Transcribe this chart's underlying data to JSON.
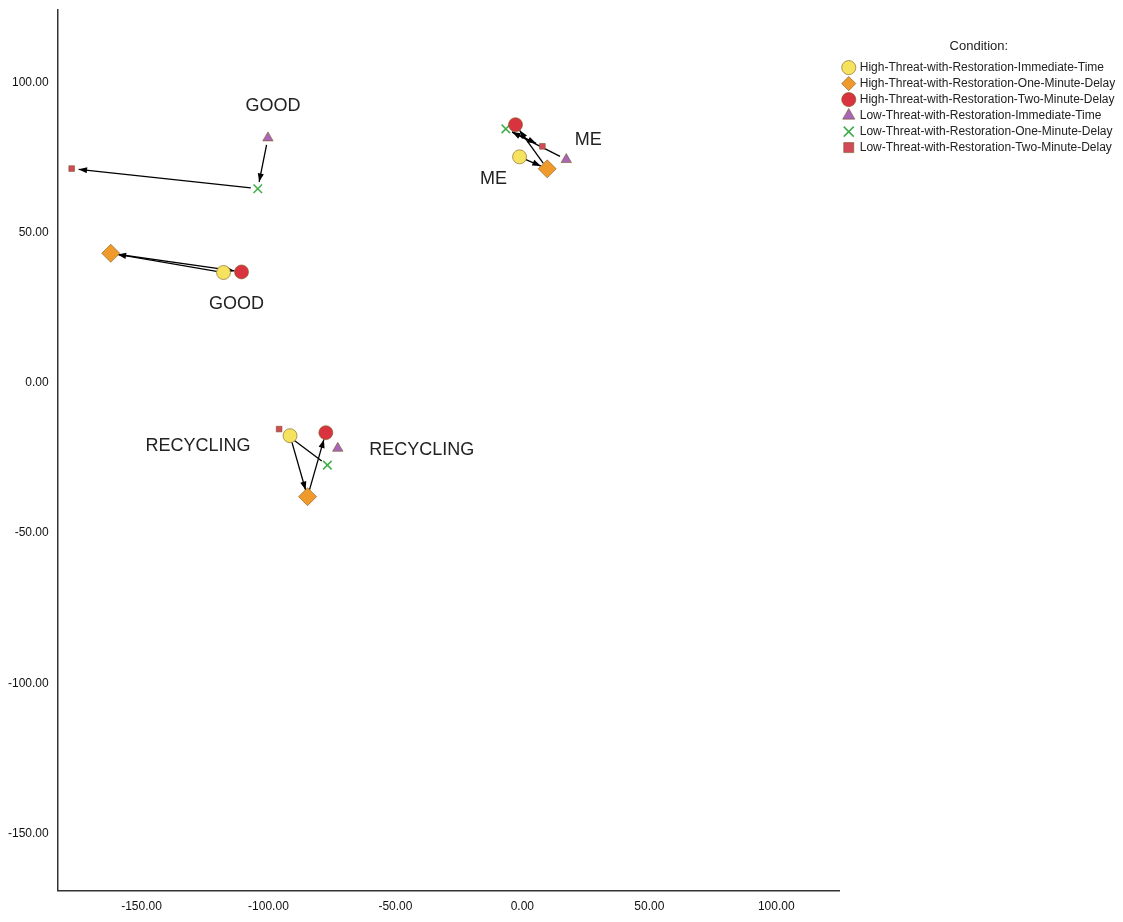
{
  "chart_data": {
    "type": "scatter",
    "legend_title": "Condition:",
    "legend": "top right",
    "grid": false,
    "xlim": [
      -183,
      125
    ],
    "ylim": [
      -169,
      124
    ],
    "xticks": [
      {
        "value": -150,
        "label": "-150.00"
      },
      {
        "value": -100,
        "label": "-100.00"
      },
      {
        "value": -50,
        "label": "-50.00"
      },
      {
        "value": 0,
        "label": "0.00"
      },
      {
        "value": 50,
        "label": "50.00"
      },
      {
        "value": 100,
        "label": "100.00"
      }
    ],
    "yticks": [
      {
        "value": -150,
        "label": "-150.00"
      },
      {
        "value": -100,
        "label": "-100.00"
      },
      {
        "value": -50,
        "label": "-50.00"
      },
      {
        "value": 0,
        "label": "0.00"
      },
      {
        "value": 50,
        "label": "50.00"
      },
      {
        "value": 100,
        "label": "100.00"
      }
    ],
    "series": [
      {
        "name": "High-Threat-with-Restoration-Immediate-Time",
        "color": "#f5e25e",
        "marker": "circle",
        "x": [
          -117.7,
          -1.1,
          -91.5
        ],
        "values": [
          36.7,
          75.2,
          -17.6
        ]
      },
      {
        "name": "High-Threat-with-Restoration-One-Minute-Delay",
        "color": "#f09a2c",
        "marker": "diamond",
        "x": [
          -162.1,
          9.8,
          -84.6
        ],
        "values": [
          43.1,
          71.2,
          -37.9
        ]
      },
      {
        "name": "High-Threat-with-Restoration-Two-Minute-Delay",
        "color": "#d8333f",
        "marker": "circle",
        "x": [
          -110.6,
          -2.7,
          -77.4
        ],
        "values": [
          36.9,
          85.9,
          -16.6
        ]
      },
      {
        "name": "Low-Threat-with-Restoration-Immediate-Time",
        "color": "#a866b8",
        "marker": "triangle",
        "x": [
          -100.2,
          17.3,
          -72.7
        ],
        "values": [
          81.5,
          74.3,
          -21.8
        ]
      },
      {
        "name": "Low-Threat-with-Restoration-One-Minute-Delay",
        "color": "#3fae49",
        "marker": "cross",
        "x": [
          -104.2,
          -6.5,
          -76.8
        ],
        "values": [
          64.6,
          84.5,
          -27.4
        ]
      },
      {
        "name": "Low-Threat-with-Restoration-Two-Minute-Delay",
        "color": "#d04a5a",
        "marker": "square",
        "x": [
          -177.5,
          7.9,
          -95.8
        ],
        "values": [
          71.3,
          78.7,
          -15.4
        ]
      }
    ],
    "annotations": [
      {
        "text": "GOOD",
        "x": -100.2,
        "y": 81.5
      },
      {
        "text": "GOOD",
        "x": -110.6,
        "y": 36.9
      },
      {
        "text": "ME",
        "x": 17.3,
        "y": 74.3
      },
      {
        "text": "ME",
        "x": -1.1,
        "y": 75.2
      },
      {
        "text": "RECYCLING",
        "x": -91.5,
        "y": -17.6
      },
      {
        "text": "RECYCLING",
        "x": -72.7,
        "y": -21.8
      }
    ]
  }
}
